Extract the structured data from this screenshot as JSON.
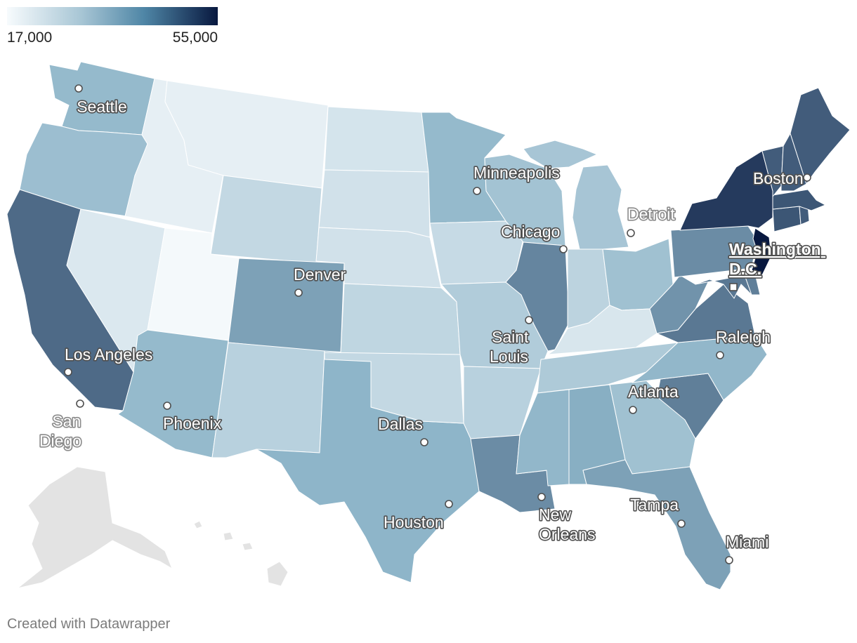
{
  "legend": {
    "min_label": "17,000",
    "max_label": "55,000",
    "min_value": 17000,
    "max_value": 55000,
    "color_low": "#f7fbfd",
    "color_mid": "#8db4c8",
    "color_high": "#08183f"
  },
  "no_data_color": "#e3e3e3",
  "credit": "Created with Datawrapper",
  "states": [
    {
      "code": "WA",
      "value": 31000
    },
    {
      "code": "OR",
      "value": 30000
    },
    {
      "code": "CA",
      "value": 43000
    },
    {
      "code": "ID",
      "value": 19500
    },
    {
      "code": "MT",
      "value": 19500
    },
    {
      "code": "WY",
      "value": 24500
    },
    {
      "code": "NV",
      "value": 21000
    },
    {
      "code": "UT",
      "value": 17500
    },
    {
      "code": "AZ",
      "value": 31000
    },
    {
      "code": "CO",
      "value": 35000
    },
    {
      "code": "NM",
      "value": 26000
    },
    {
      "code": "TX",
      "value": 32000
    },
    {
      "code": "ND",
      "value": 22000
    },
    {
      "code": "SD",
      "value": 22500
    },
    {
      "code": "NE",
      "value": 22500
    },
    {
      "code": "KS",
      "value": 25000
    },
    {
      "code": "OK",
      "value": 24500
    },
    {
      "code": "MN",
      "value": 31000
    },
    {
      "code": "IA",
      "value": 24000
    },
    {
      "code": "MO",
      "value": 27000
    },
    {
      "code": "AR",
      "value": 26000
    },
    {
      "code": "LA",
      "value": 38000
    },
    {
      "code": "WI",
      "value": 29000
    },
    {
      "code": "IL",
      "value": 39000
    },
    {
      "code": "MI",
      "value": 28500
    },
    {
      "code": "IN",
      "value": 25500
    },
    {
      "code": "OH",
      "value": 29500
    },
    {
      "code": "KY",
      "value": 21500
    },
    {
      "code": "TN",
      "value": 27500
    },
    {
      "code": "MS",
      "value": 31500
    },
    {
      "code": "AL",
      "value": 33000
    },
    {
      "code": "GA",
      "value": 29500
    },
    {
      "code": "FL",
      "value": 35000
    },
    {
      "code": "SC",
      "value": 40000
    },
    {
      "code": "NC",
      "value": 31500
    },
    {
      "code": "VA",
      "value": 41000
    },
    {
      "code": "WV",
      "value": 37000
    },
    {
      "code": "PA",
      "value": 38000
    },
    {
      "code": "NY",
      "value": 50000
    },
    {
      "code": "NJ",
      "value": 55000
    },
    {
      "code": "MD",
      "value": 41000
    },
    {
      "code": "DE",
      "value": 40000
    },
    {
      "code": "CT",
      "value": 46000
    },
    {
      "code": "RI",
      "value": 45000
    },
    {
      "code": "MA",
      "value": 46000
    },
    {
      "code": "VT",
      "value": 45000
    },
    {
      "code": "NH",
      "value": 45000
    },
    {
      "code": "ME",
      "value": 45000
    }
  ],
  "cities": [
    {
      "id": "seattle",
      "label": "Seattle"
    },
    {
      "id": "los-angeles",
      "label": "Los Angeles"
    },
    {
      "id": "san-diego",
      "label": "San Diego"
    },
    {
      "id": "phoenix",
      "label": "Phoenix"
    },
    {
      "id": "denver",
      "label": "Denver"
    },
    {
      "id": "dallas",
      "label": "Dallas"
    },
    {
      "id": "houston",
      "label": "Houston"
    },
    {
      "id": "minneapolis",
      "label": "Minneapolis"
    },
    {
      "id": "chicago",
      "label": "Chicago"
    },
    {
      "id": "saint-louis",
      "label": "Saint Louis"
    },
    {
      "id": "new-orleans",
      "label": "New Orleans"
    },
    {
      "id": "detroit",
      "label": "Detroit"
    },
    {
      "id": "atlanta",
      "label": "Atlanta"
    },
    {
      "id": "raleigh",
      "label": "Raleigh"
    },
    {
      "id": "tampa",
      "label": "Tampa"
    },
    {
      "id": "miami",
      "label": "Miami"
    },
    {
      "id": "washington-dc",
      "label": "Washington D.C."
    },
    {
      "id": "boston",
      "label": "Boston"
    }
  ]
}
